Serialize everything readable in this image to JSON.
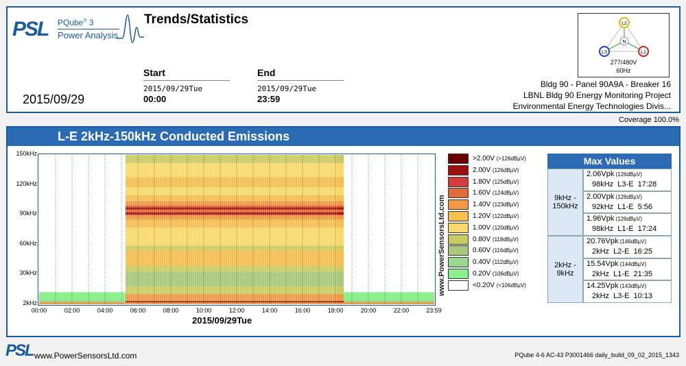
{
  "header": {
    "logo_psl": "PSL",
    "product": "PQube",
    "product_sup": "®",
    "product_ver": "3",
    "product_sub": "Power Analysis",
    "title": "Trends/Statistics",
    "start_label": "Start",
    "start_date": "2015/09/29Tue",
    "start_time": "00:00",
    "end_label": "End",
    "end_date": "2015/09/29Tue",
    "end_time": "23:59",
    "date": "2015/09/29",
    "location": [
      "Bldg 90 - Panel 90A9A - Breaker 16",
      "LBNL Bldg 90 Energy Monitoring Project",
      "Environmental Energy Technologies Divis..."
    ],
    "coverage": "Coverage 100.0%"
  },
  "phase_diagram": {
    "nodes": [
      "L2",
      "L3",
      "L1",
      "N"
    ],
    "node_colors": {
      "L2": "#e0b800",
      "L3": "#2040c0",
      "L1": "#d02020",
      "N": "#888888"
    },
    "voltage": "277/480V",
    "frequency": "60Hz"
  },
  "panel_title": "L-E 2kHz-150kHz Conducted Emissions",
  "chart_data": {
    "type": "heatmap",
    "title": "L-E 2kHz-150kHz Conducted Emissions",
    "y_ticks": [
      "150kHz",
      "120kHz",
      "90kHz",
      "60kHz",
      "30kHz",
      "2kHz"
    ],
    "x_ticks": [
      "00:00",
      "02:00",
      "04:00",
      "06:00",
      "08:00",
      "10:00",
      "12:00",
      "14:00",
      "16:00",
      "18:00",
      "20:00",
      "22:00",
      "23:59"
    ],
    "xlabel": "2015/09/29Tue",
    "ylim_khz": [
      2,
      150
    ],
    "x_range_hours": [
      0,
      24
    ],
    "high_activity_window_hours": [
      5.25,
      18.5
    ],
    "dominant_band_khz": [
      92,
      98
    ]
  },
  "watermark": "www.PowerSensorsLtd.com",
  "legend": [
    {
      "label": ">2.00V",
      "db": "(>126dBµV)",
      "color": "#6b0000"
    },
    {
      "label": "2.00V",
      "db": "(126dBµV)",
      "color": "#a01010"
    },
    {
      "label": "1.80V",
      "db": "(125dBµV)",
      "color": "#d23c3c"
    },
    {
      "label": "1.60V",
      "db": "(124dBµV)",
      "color": "#e06a3a"
    },
    {
      "label": "1.40V",
      "db": "(123dBµV)",
      "color": "#f09a48"
    },
    {
      "label": "1.20V",
      "db": "(122dBµV)",
      "color": "#f6bf52"
    },
    {
      "label": "1.00V",
      "db": "(120dBµV)",
      "color": "#f8da6c"
    },
    {
      "label": "0.80V",
      "db": "(118dBµV)",
      "color": "#c9cc62"
    },
    {
      "label": "0.60V",
      "db": "(116dBµV)",
      "color": "#a8c87a"
    },
    {
      "label": "0.40V",
      "db": "(112dBµV)",
      "color": "#98d890"
    },
    {
      "label": "0.20V",
      "db": "(106dBµV)",
      "color": "#8cf08c"
    },
    {
      "label": "<0.20V",
      "db": "(<106dBµV)",
      "color": "#ffffff"
    }
  ],
  "max_values": {
    "title": "Max Values",
    "groups": [
      {
        "label": "9kHz -\n150kHz",
        "rows": [
          {
            "v": "2.06Vpk",
            "db": "(126dBµV)",
            "detail": "98kHz  L3-E  17:28"
          },
          {
            "v": "2.00Vpk",
            "db": "(126dBµV)",
            "detail": "92kHz  L1-E  5:56"
          },
          {
            "v": "1.96Vpk",
            "db": "(126dBµV)",
            "detail": "98kHz  L1-E  17:24"
          }
        ]
      },
      {
        "label": "2kHz -\n9kHz",
        "rows": [
          {
            "v": "20.76Vpk",
            "db": "(146dBµV)",
            "detail": "2kHz  L2-E  16:25"
          },
          {
            "v": "15.54Vpk",
            "db": "(144dBµV)",
            "detail": "2kHz  L1-E  21:35"
          },
          {
            "v": "14.25Vpk",
            "db": "(143dBµV)",
            "detail": "2kHz  L3-E  10:13"
          }
        ]
      }
    ]
  },
  "footer": {
    "logo": "PSL",
    "url": "www.PowerSensorsLtd.com",
    "build": "PQube 4-6 AC-43   P3001466  daily_build_09_02_2015_1343"
  }
}
